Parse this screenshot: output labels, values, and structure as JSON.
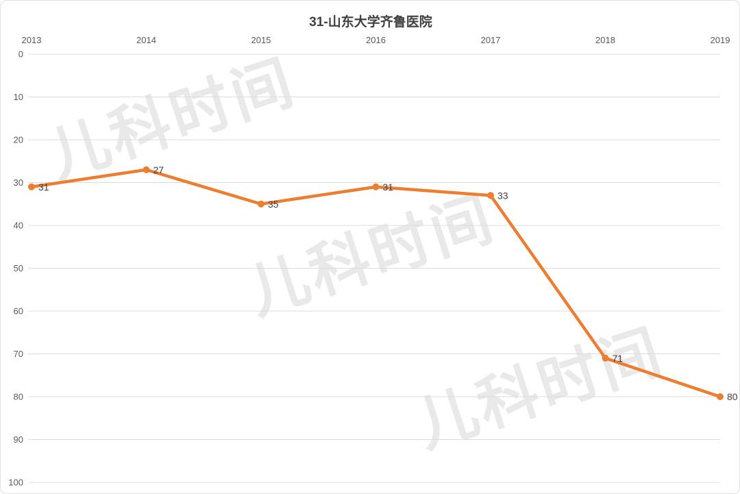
{
  "chart_data": {
    "type": "line",
    "title": "31-山东大学齐鲁医院",
    "categories": [
      "2013",
      "2014",
      "2015",
      "2016",
      "2017",
      "2018",
      "2019"
    ],
    "values": [
      31,
      27,
      35,
      31,
      33,
      71,
      80
    ],
    "data_labels": [
      "31",
      "27",
      "35",
      "31",
      "33",
      "71",
      "80"
    ],
    "x_axis": {
      "position": "top",
      "tick_labels": [
        "2013",
        "2014",
        "2015",
        "2016",
        "2017",
        "2018",
        "2019"
      ]
    },
    "y_axis": {
      "min": 0,
      "max": 100,
      "step": 10,
      "inverted": true,
      "tick_labels": [
        "0",
        "10",
        "20",
        "30",
        "40",
        "50",
        "60",
        "70",
        "80",
        "90",
        "100"
      ]
    },
    "grid": true,
    "legend": false,
    "line_color": "#ED7D31"
  },
  "watermark": {
    "text": "儿科时间",
    "count": 3
  },
  "colors": {
    "line": "#ED7D31",
    "grid": "#dcdcdc",
    "axis_text": "#595959",
    "label_text": "#404040",
    "title_text": "#404040",
    "watermark": "#e9e9e9",
    "frame_border": "#e0e0e0"
  }
}
